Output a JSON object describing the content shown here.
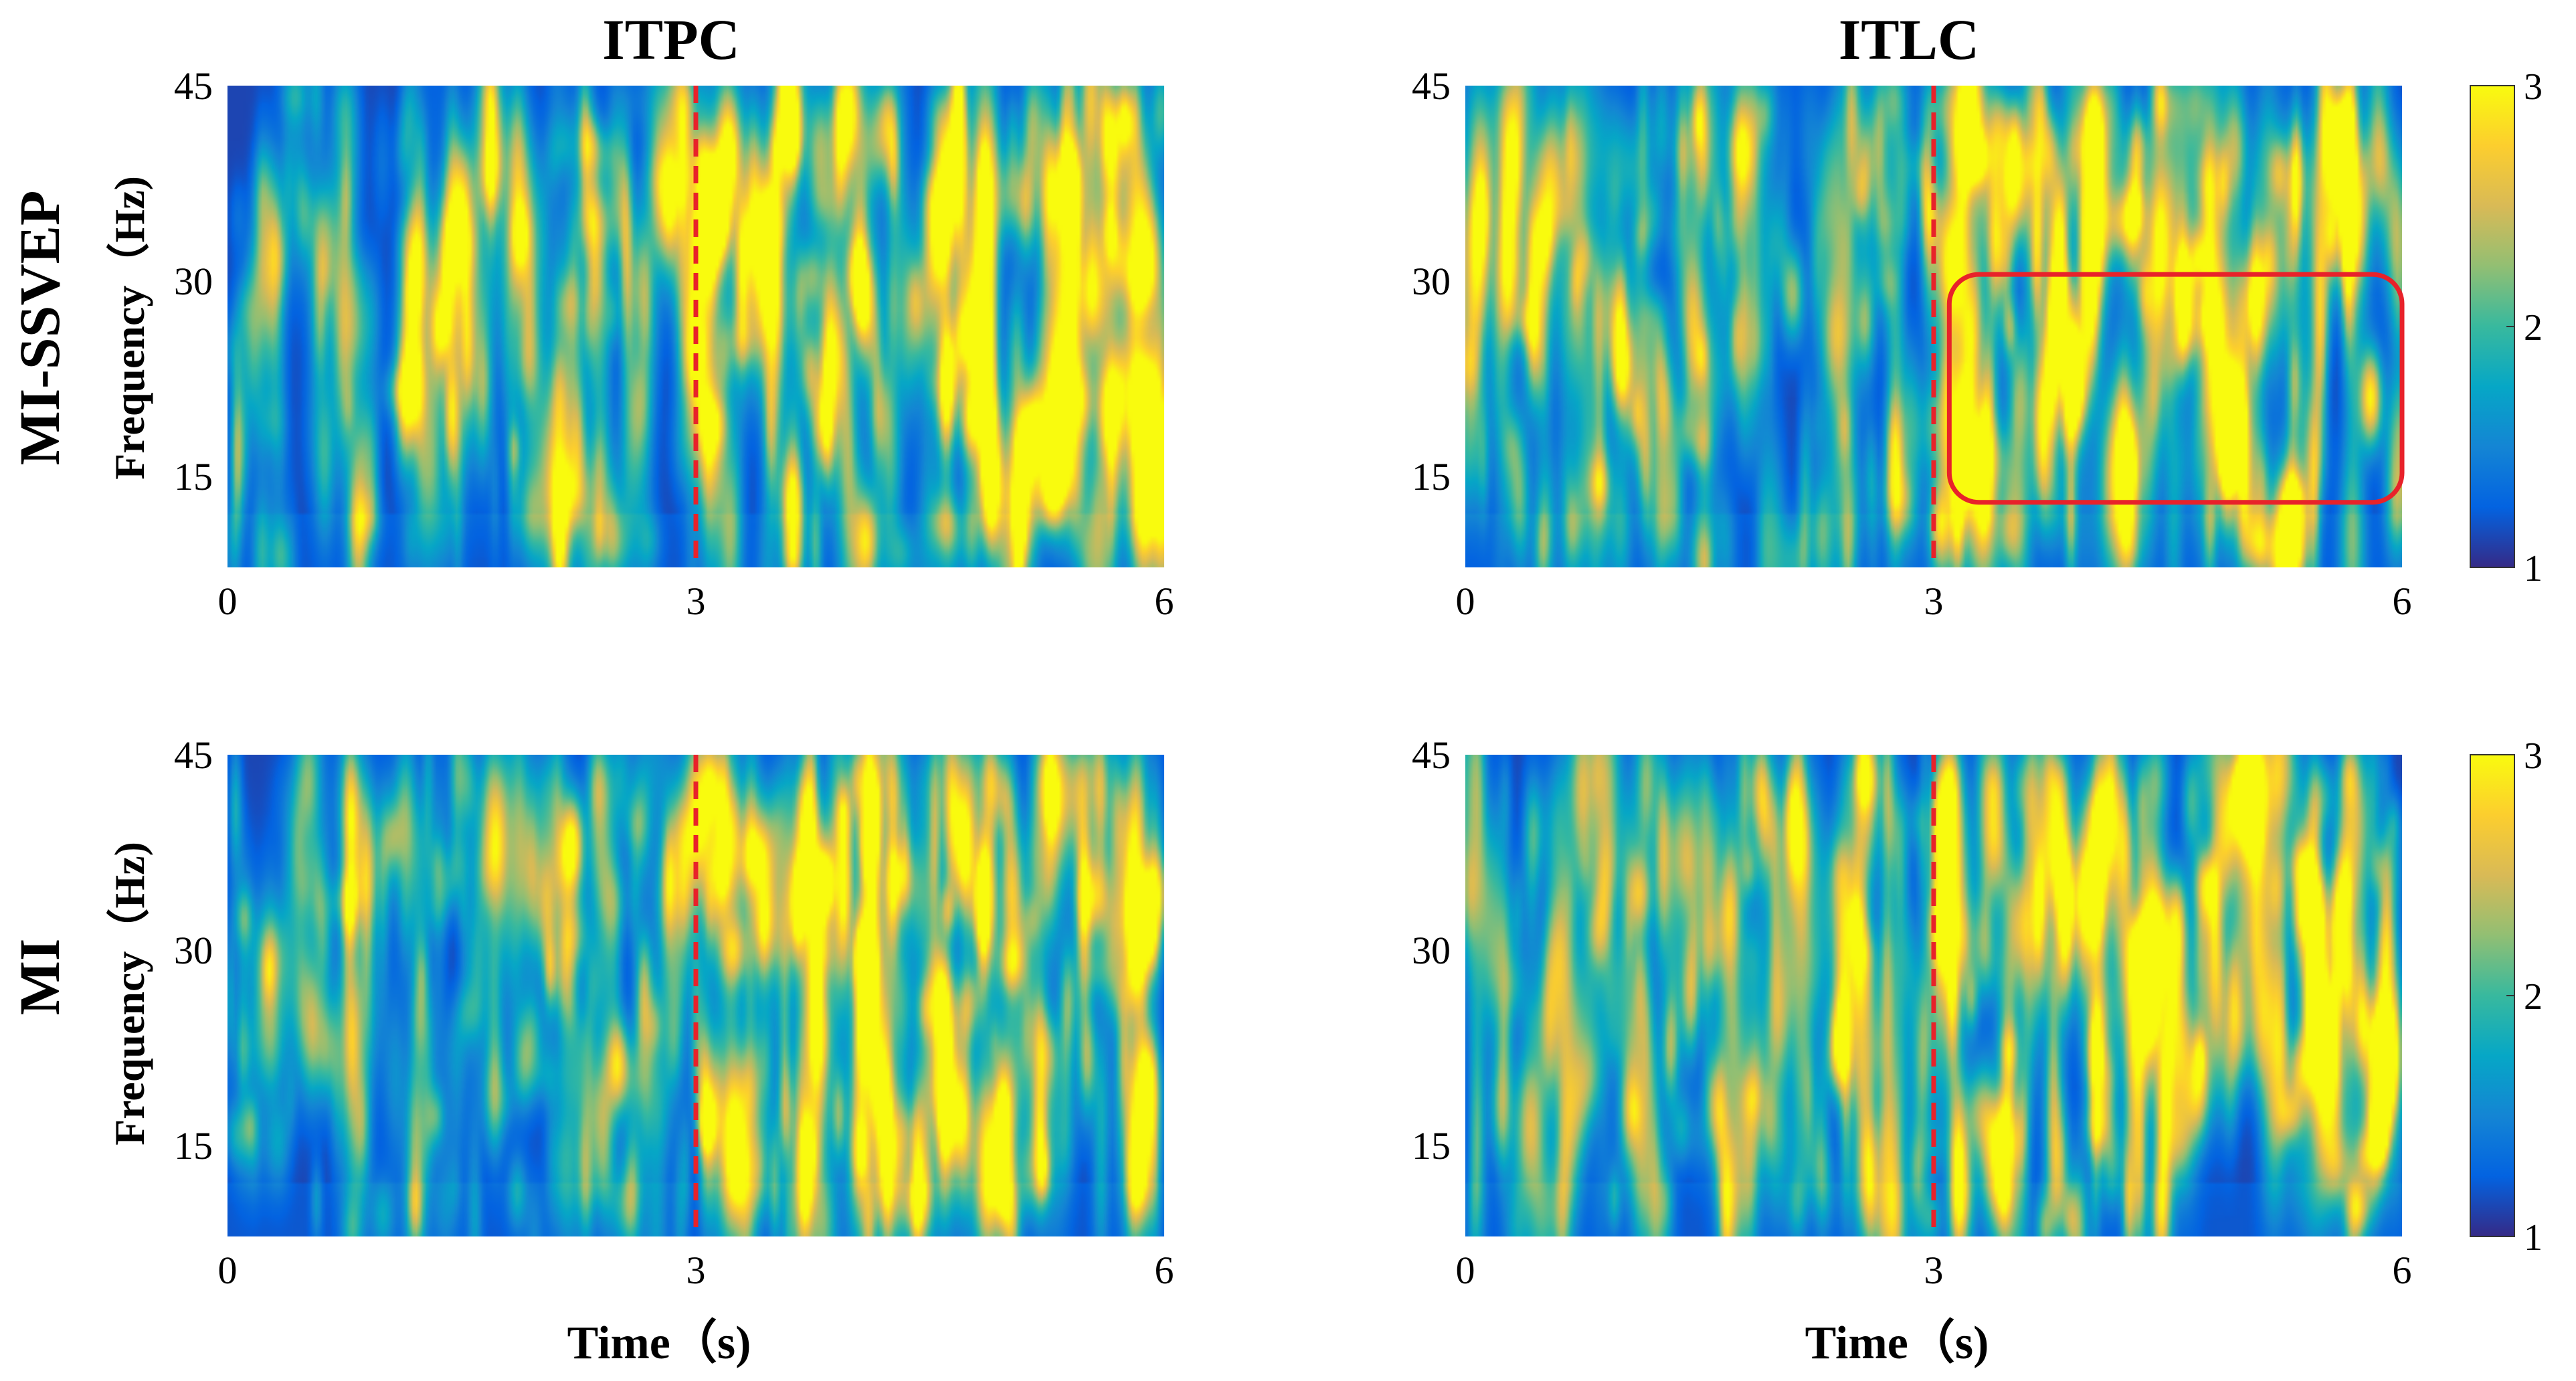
{
  "chart_data": [
    {
      "type": "heatmap",
      "panel": "top-left",
      "column_title": "ITPC",
      "row_title": "MI-SSVEP",
      "xlabel": "",
      "ylabel": "Frequency (Hz)",
      "xlim": [
        0,
        6
      ],
      "ylim": [
        8,
        45
      ],
      "x_ticks": [
        "0",
        "3",
        "6"
      ],
      "y_ticks": [
        "15",
        "30",
        "45"
      ],
      "event_line_x": 3,
      "event_line_color": "#e8222a",
      "colormap": "parula",
      "clim": [
        1,
        3
      ],
      "seed": 11,
      "hotspots": [
        {
          "t": 3.1,
          "f": 35,
          "v": 2.6
        },
        {
          "t": 5.3,
          "f": 16,
          "v": 2.9
        },
        {
          "t": 5.4,
          "f": 37,
          "v": 2.5
        },
        {
          "t": 4.1,
          "f": 10,
          "v": 2.4
        },
        {
          "t": 3.8,
          "f": 19,
          "v": 2.2
        },
        {
          "t": 4.6,
          "f": 21,
          "v": 2.2
        },
        {
          "t": 5.9,
          "f": 18,
          "v": 2.1
        },
        {
          "t": 3.6,
          "f": 13,
          "v": 2.0
        },
        {
          "t": 1.2,
          "f": 22,
          "v": 1.9
        }
      ]
    },
    {
      "type": "heatmap",
      "panel": "top-right",
      "column_title": "ITLC",
      "row_title": "MI-SSVEP",
      "xlabel": "",
      "ylabel": "",
      "xlim": [
        0,
        6
      ],
      "ylim": [
        8,
        45
      ],
      "x_ticks": [
        "0",
        "3",
        "6"
      ],
      "y_ticks": [
        "15",
        "30",
        "45"
      ],
      "event_line_x": 3,
      "event_line_color": "#e8222a",
      "highlight_box": {
        "t0": 3.1,
        "t1": 6.0,
        "f0": 13,
        "f1": 30.5,
        "color": "#e8222a"
      },
      "colormap": "parula",
      "clim": [
        1,
        3
      ],
      "seed": 23,
      "hotspots": [
        {
          "t": 3.2,
          "f": 16,
          "v": 2.9
        },
        {
          "t": 3.9,
          "f": 22,
          "v": 2.8
        },
        {
          "t": 4.9,
          "f": 18,
          "v": 2.9
        },
        {
          "t": 5.8,
          "f": 21,
          "v": 2.9
        },
        {
          "t": 4.6,
          "f": 29,
          "v": 2.6
        },
        {
          "t": 5.6,
          "f": 40,
          "v": 2.6
        },
        {
          "t": 1.0,
          "f": 23,
          "v": 2.4
        },
        {
          "t": 2.1,
          "f": 29,
          "v": 2.2
        },
        {
          "t": 3.5,
          "f": 37,
          "v": 2.3
        }
      ]
    },
    {
      "type": "heatmap",
      "panel": "bottom-left",
      "column_title": "ITPC",
      "row_title": "MI",
      "xlabel": "Time (s)",
      "ylabel": "Frequency (Hz)",
      "xlim": [
        0,
        6
      ],
      "ylim": [
        8,
        45
      ],
      "x_ticks": [
        "0",
        "3",
        "6"
      ],
      "y_ticks": [
        "15",
        "30",
        "45"
      ],
      "event_line_x": 3,
      "event_line_color": "#e8222a",
      "colormap": "parula",
      "clim": [
        1,
        3
      ],
      "seed": 37,
      "hotspots": [
        {
          "t": 2.2,
          "f": 38,
          "v": 2.5
        },
        {
          "t": 2.5,
          "f": 21,
          "v": 2.4
        },
        {
          "t": 3.1,
          "f": 43,
          "v": 2.5
        },
        {
          "t": 5.9,
          "f": 33,
          "v": 2.3
        },
        {
          "t": 5.9,
          "f": 20,
          "v": 2.2
        },
        {
          "t": 4.6,
          "f": 25,
          "v": 2.0
        },
        {
          "t": 3.4,
          "f": 13,
          "v": 2.0
        }
      ]
    },
    {
      "type": "heatmap",
      "panel": "bottom-right",
      "column_title": "ITLC",
      "row_title": "MI",
      "xlabel": "Time (s)",
      "ylabel": "",
      "xlim": [
        0,
        6
      ],
      "ylim": [
        8,
        45
      ],
      "x_ticks": [
        "0",
        "3",
        "6"
      ],
      "y_ticks": [
        "15",
        "30",
        "45"
      ],
      "event_line_x": 3,
      "event_line_color": "#e8222a",
      "colormap": "parula",
      "clim": [
        1,
        3
      ],
      "seed": 51,
      "hotspots": [
        {
          "t": 2.4,
          "f": 23,
          "v": 2.7
        },
        {
          "t": 5.9,
          "f": 21,
          "v": 2.9
        },
        {
          "t": 3.1,
          "f": 43,
          "v": 2.4
        },
        {
          "t": 4.3,
          "f": 29,
          "v": 2.2
        },
        {
          "t": 4.7,
          "f": 19,
          "v": 2.1
        },
        {
          "t": 1.6,
          "f": 18,
          "v": 1.9
        }
      ]
    }
  ],
  "colorbars": [
    {
      "ticks": [
        "1",
        "2",
        "3"
      ],
      "range": [
        1,
        3
      ],
      "colormap": "parula"
    },
    {
      "ticks": [
        "1",
        "2",
        "3"
      ],
      "range": [
        1,
        3
      ],
      "colormap": "parula"
    }
  ],
  "colors": {
    "parula": [
      "#352a87",
      "#0363e1",
      "#1485d4",
      "#06a7c6",
      "#38b99e",
      "#92bf73",
      "#d9ba56",
      "#fcce2e",
      "#f9fb0e"
    ],
    "event_line": "#e8222a"
  },
  "labels": {
    "col_itpc": "ITPC",
    "col_itlc": "ITLC",
    "row_top": "MI-SSVEP",
    "row_bottom": "MI",
    "ylabel": "Frequency（Hz)",
    "xlabel": "Time（s)"
  }
}
